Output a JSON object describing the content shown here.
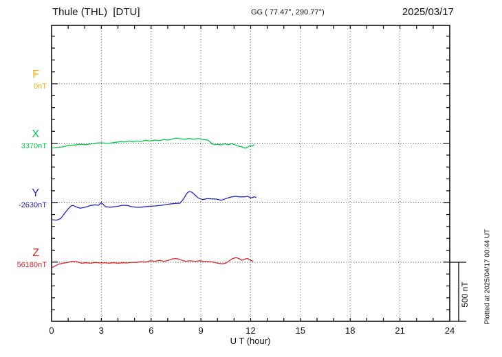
{
  "chart_data": {
    "type": "line",
    "title": "Thule (THL)  [DTU]",
    "coordinates_label": "GG ( 77.47°, 290.77°)",
    "date": "2025/03/17",
    "xlabel": "U T (hour)",
    "xlim": [
      0,
      24
    ],
    "xticks": [
      0,
      3,
      6,
      9,
      12,
      15,
      18,
      21,
      24
    ],
    "x_gridline_every_hours": 3,
    "x_minor_tick_every_hours": 1,
    "trace_offset_nT": 500,
    "y_minor_tick_nT": 100,
    "scale_bar_label": "500 nT",
    "plotted_at": "Plotted at 2025/04/17 00:44 UT",
    "legend_position": "left",
    "grid": "dotted",
    "series": [
      {
        "name": "F",
        "baseline_label": "0nT",
        "color": "#FFAA00",
        "points": []
      },
      {
        "name": "X",
        "baseline_label": "3370nT",
        "color": "#00CC44",
        "points": [
          [
            0,
            -43
          ],
          [
            0.35,
            -35
          ],
          [
            0.69,
            -31
          ],
          [
            1.04,
            -18
          ],
          [
            1.38,
            -16
          ],
          [
            1.73,
            -9
          ],
          [
            2.07,
            -13
          ],
          [
            2.42,
            -5
          ],
          [
            2.76,
            1
          ],
          [
            2.98,
            3
          ],
          [
            3.32,
            -1
          ],
          [
            3.59,
            1
          ],
          [
            3.87,
            7
          ],
          [
            4.15,
            14
          ],
          [
            4.42,
            10
          ],
          [
            4.7,
            18
          ],
          [
            4.91,
            10
          ],
          [
            5.11,
            18
          ],
          [
            5.39,
            14
          ],
          [
            5.67,
            24
          ],
          [
            5.94,
            18
          ],
          [
            6.22,
            26
          ],
          [
            6.49,
            22
          ],
          [
            6.77,
            30
          ],
          [
            7.05,
            26
          ],
          [
            7.32,
            37
          ],
          [
            7.53,
            43
          ],
          [
            7.74,
            37
          ],
          [
            8.01,
            33
          ],
          [
            8.29,
            39
          ],
          [
            8.57,
            33
          ],
          [
            8.84,
            39
          ],
          [
            9.12,
            30
          ],
          [
            9.4,
            26
          ],
          [
            9.53,
            14
          ],
          [
            9.67,
            -5
          ],
          [
            9.81,
            -13
          ],
          [
            10.02,
            -9
          ],
          [
            10.22,
            -15
          ],
          [
            10.43,
            -5
          ],
          [
            10.64,
            -13
          ],
          [
            10.85,
            -5
          ],
          [
            11.05,
            -13
          ],
          [
            11.26,
            -24
          ],
          [
            11.47,
            -32
          ],
          [
            11.68,
            -43
          ],
          [
            11.82,
            -35
          ],
          [
            11.95,
            -19
          ],
          [
            12.09,
            -24
          ],
          [
            12.23,
            -13
          ]
        ]
      },
      {
        "name": "Y",
        "baseline_label": "-2630nT",
        "color": "#2222CC",
        "points": [
          [
            0,
            -147
          ],
          [
            0.28,
            -151
          ],
          [
            0.55,
            -138
          ],
          [
            0.76,
            -99
          ],
          [
            0.97,
            -61
          ],
          [
            1.17,
            -32
          ],
          [
            1.31,
            -28
          ],
          [
            1.52,
            -42
          ],
          [
            1.73,
            -51
          ],
          [
            1.93,
            -45
          ],
          [
            2.14,
            -38
          ],
          [
            2.35,
            -28
          ],
          [
            2.63,
            -22
          ],
          [
            2.83,
            -26
          ],
          [
            2.97,
            -5
          ],
          [
            3.07,
            -13
          ],
          [
            3.25,
            -38
          ],
          [
            3.52,
            -42
          ],
          [
            3.8,
            -38
          ],
          [
            4.08,
            -32
          ],
          [
            4.28,
            -26
          ],
          [
            4.56,
            -28
          ],
          [
            4.84,
            -38
          ],
          [
            5.11,
            -43
          ],
          [
            5.39,
            -42
          ],
          [
            5.8,
            -36
          ],
          [
            6.22,
            -32
          ],
          [
            6.63,
            -26
          ],
          [
            6.98,
            -18
          ],
          [
            7.25,
            -13
          ],
          [
            7.53,
            -10
          ],
          [
            7.74,
            -9
          ],
          [
            7.95,
            26
          ],
          [
            8.15,
            74
          ],
          [
            8.29,
            90
          ],
          [
            8.46,
            84
          ],
          [
            8.64,
            61
          ],
          [
            8.84,
            36
          ],
          [
            9.09,
            22
          ],
          [
            9.4,
            30
          ],
          [
            9.67,
            28
          ],
          [
            9.95,
            26
          ],
          [
            10.22,
            16
          ],
          [
            10.5,
            30
          ],
          [
            10.78,
            42
          ],
          [
            11.05,
            49
          ],
          [
            11.33,
            45
          ],
          [
            11.61,
            45
          ],
          [
            11.82,
            49
          ],
          [
            12.02,
            36
          ],
          [
            12.23,
            45
          ],
          [
            12.34,
            39
          ]
        ]
      },
      {
        "name": "Z",
        "baseline_label": "56180nT",
        "color": "#DD2222",
        "points": [
          [
            0,
            -46
          ],
          [
            0.21,
            -31
          ],
          [
            0.41,
            -17
          ],
          [
            0.69,
            -8
          ],
          [
            0.97,
            -2
          ],
          [
            1.24,
            8
          ],
          [
            1.52,
            4
          ],
          [
            1.8,
            -8
          ],
          [
            2.07,
            -4
          ],
          [
            2.35,
            -8
          ],
          [
            2.63,
            -2
          ],
          [
            2.9,
            -6
          ],
          [
            3.18,
            -4
          ],
          [
            3.45,
            -8
          ],
          [
            3.73,
            -4
          ],
          [
            4.01,
            -8
          ],
          [
            4.28,
            -4
          ],
          [
            4.56,
            -6
          ],
          [
            4.84,
            0
          ],
          [
            5.11,
            -2
          ],
          [
            5.39,
            4
          ],
          [
            5.67,
            2
          ],
          [
            5.94,
            12
          ],
          [
            6.22,
            8
          ],
          [
            6.49,
            16
          ],
          [
            6.77,
            8
          ],
          [
            7.05,
            17
          ],
          [
            7.25,
            27
          ],
          [
            7.46,
            31
          ],
          [
            7.67,
            27
          ],
          [
            7.88,
            16
          ],
          [
            8.08,
            8
          ],
          [
            8.36,
            12
          ],
          [
            8.64,
            8
          ],
          [
            8.91,
            12
          ],
          [
            9.19,
            8
          ],
          [
            9.47,
            6
          ],
          [
            9.74,
            2
          ],
          [
            10.02,
            -8
          ],
          [
            10.29,
            -13
          ],
          [
            10.5,
            -8
          ],
          [
            10.71,
            12
          ],
          [
            10.92,
            31
          ],
          [
            11.12,
            39
          ],
          [
            11.3,
            31
          ],
          [
            11.47,
            16
          ],
          [
            11.65,
            27
          ],
          [
            11.82,
            31
          ],
          [
            12.0,
            16
          ],
          [
            12.16,
            8
          ]
        ]
      }
    ]
  }
}
